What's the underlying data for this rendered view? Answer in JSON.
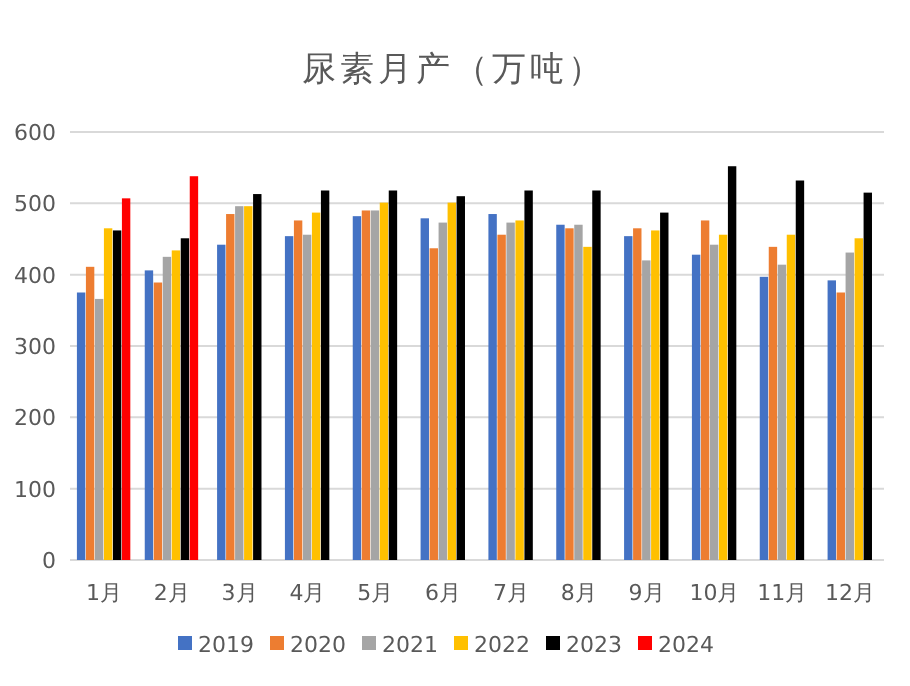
{
  "chart_data": {
    "type": "bar",
    "title": "尿素月产（万吨）",
    "categories": [
      "1月",
      "2月",
      "3月",
      "4月",
      "5月",
      "6月",
      "7月",
      "8月",
      "9月",
      "10月",
      "11月",
      "12月"
    ],
    "series": [
      {
        "name": "2019",
        "color": "#4472c4",
        "values": [
          375,
          406,
          442,
          454,
          482,
          479,
          485,
          470,
          454,
          428,
          397,
          392
        ]
      },
      {
        "name": "2020",
        "color": "#ed7d31",
        "values": [
          411,
          389,
          485,
          476,
          490,
          437,
          456,
          465,
          465,
          476,
          439,
          375
        ]
      },
      {
        "name": "2021",
        "color": "#a5a5a5",
        "values": [
          366,
          425,
          496,
          456,
          490,
          473,
          473,
          470,
          420,
          442,
          414,
          431
        ]
      },
      {
        "name": "2022",
        "color": "#ffc000",
        "values": [
          465,
          434,
          496,
          487,
          501,
          501,
          476,
          439,
          462,
          456,
          456,
          451
        ]
      },
      {
        "name": "2023",
        "color": "#000000",
        "values": [
          462,
          451,
          513,
          518,
          518,
          510,
          518,
          518,
          487,
          552,
          532,
          515
        ]
      },
      {
        "name": "2024",
        "color": "#ff0000",
        "values": [
          507,
          538,
          null,
          null,
          null,
          null,
          null,
          null,
          null,
          null,
          null,
          null
        ]
      }
    ],
    "ylim": [
      0,
      600
    ],
    "yticks": [
      0,
      100,
      200,
      300,
      400,
      500,
      600
    ],
    "grid": "y",
    "legend": "bottom"
  }
}
